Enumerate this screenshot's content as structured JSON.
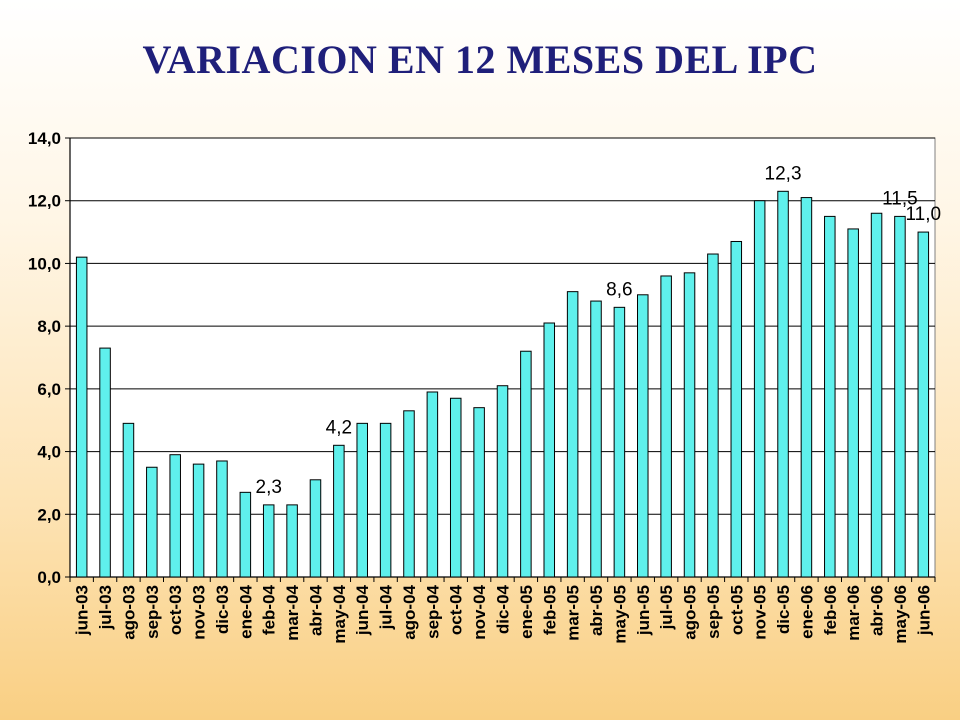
{
  "chart_data": {
    "type": "bar",
    "title": "VARIACION EN 12 MESES DEL IPC",
    "xlabel": "",
    "ylabel": "",
    "ylim": [
      0,
      14
    ],
    "yticks": [
      "0,0",
      "2,0",
      "4,0",
      "6,0",
      "8,0",
      "10,0",
      "12,0",
      "14,0"
    ],
    "grid": true,
    "legend": "none",
    "categories": [
      "jun-03",
      "jul-03",
      "ago-03",
      "sep-03",
      "oct-03",
      "nov-03",
      "dic-03",
      "ene-04",
      "feb-04",
      "mar-04",
      "abr-04",
      "may-04",
      "jun-04",
      "jul-04",
      "ago-04",
      "sep-04",
      "oct-04",
      "nov-04",
      "dic-04",
      "ene-05",
      "feb-05",
      "mar-05",
      "abr-05",
      "may-05",
      "jun-05",
      "jul-05",
      "ago-05",
      "sep-05",
      "oct-05",
      "nov-05",
      "dic-05",
      "ene-06",
      "feb-06",
      "mar-06",
      "abr-06",
      "may-06",
      "jun-06"
    ],
    "values": [
      10.2,
      7.3,
      4.9,
      3.5,
      3.9,
      3.6,
      3.7,
      2.7,
      2.3,
      2.3,
      3.1,
      4.2,
      4.9,
      4.9,
      5.3,
      5.9,
      5.7,
      5.4,
      6.1,
      7.2,
      8.1,
      9.1,
      8.8,
      8.6,
      9.0,
      9.6,
      9.7,
      10.3,
      10.7,
      12.0,
      12.3,
      12.1,
      11.5,
      11.1,
      11.6,
      11.5,
      11.0
    ],
    "data_labels": [
      {
        "category": "feb-04",
        "text": "2,3"
      },
      {
        "category": "may-04",
        "text": "4,2"
      },
      {
        "category": "may-05",
        "text": "8,6"
      },
      {
        "category": "dic-05",
        "text": "12,3"
      },
      {
        "category": "may-06",
        "text": "11,5"
      },
      {
        "category": "jun-06",
        "text": "11,0"
      }
    ],
    "colors": {
      "bar_fill": "#5ff0ec",
      "bar_stroke": "#000000",
      "plot_bg": "#ffffff",
      "title": "#1f1f7a"
    }
  }
}
